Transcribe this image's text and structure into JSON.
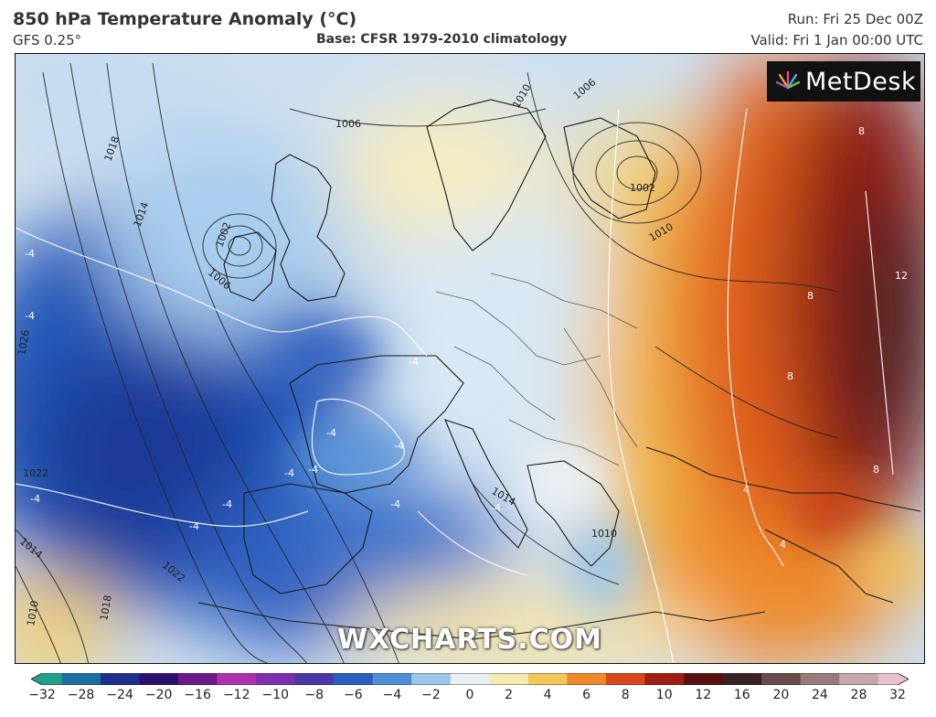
{
  "header": {
    "title": "850 hPa Temperature Anomaly (°C)",
    "model": "GFS 0.25°",
    "base": "Base: CFSR 1979-2010 climatology",
    "run": "Run: Fri 25 Dec 00Z",
    "valid": "Valid: Fri 1 Jan 00:00 UTC"
  },
  "branding": {
    "logo_text": "MetDesk",
    "watermark": "WXCHARTS.COM"
  },
  "map": {
    "pressure_labels": [
      "1018",
      "1014",
      "1002",
      "1006",
      "1006",
      "1010",
      "1006",
      "1002",
      "1010",
      "1026",
      "1022",
      "1022",
      "1014",
      "1010",
      "1018",
      "1014",
      "1010"
    ],
    "anomaly_labels": [
      "-4",
      "-4",
      "-4",
      "-4",
      "-4",
      "-4",
      "-4",
      "-4",
      "-4",
      "-4",
      "-4",
      "-4",
      "8",
      "8",
      "8",
      "8",
      "12",
      "4",
      "4"
    ]
  },
  "colorbar": {
    "ticks": [
      "−32",
      "−28",
      "−24",
      "−20",
      "−16",
      "−12",
      "−10",
      "−8",
      "−6",
      "−4",
      "−2",
      "0",
      "2",
      "4",
      "6",
      "8",
      "10",
      "12",
      "16",
      "20",
      "24",
      "28",
      "32"
    ],
    "colors": [
      "#1fa187",
      "#1b6fa0",
      "#1f2f8f",
      "#2a1170",
      "#6a1a8a",
      "#b030b0",
      "#7d2fb0",
      "#4a3aa8",
      "#2a5fbf",
      "#4e90d8",
      "#9cc6ea",
      "#e8f0f4",
      "#f5eab0",
      "#f3c85a",
      "#ee8a2a",
      "#d8481c",
      "#a01d14",
      "#5a1010",
      "#3a2222",
      "#6a4a4a",
      "#9a7a7a",
      "#c7a8a8",
      "#e8c0d0"
    ]
  }
}
